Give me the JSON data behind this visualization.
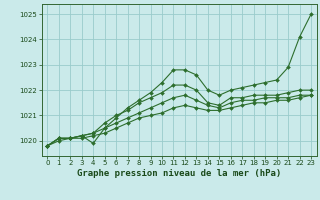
{
  "title": "Graphe pression niveau de la mer (hPa)",
  "bg_color": "#caeaea",
  "grid_color": "#99cccc",
  "line_color": "#2d6e2d",
  "xlim": [
    -0.5,
    23.5
  ],
  "ylim": [
    1019.4,
    1025.4
  ],
  "yticks": [
    1020,
    1021,
    1022,
    1023,
    1024,
    1025
  ],
  "xticks": [
    0,
    1,
    2,
    3,
    4,
    5,
    6,
    7,
    8,
    9,
    10,
    11,
    12,
    13,
    14,
    15,
    16,
    17,
    18,
    19,
    20,
    21,
    22,
    23
  ],
  "series": [
    [
      1019.8,
      1020.1,
      1020.1,
      1020.2,
      1019.9,
      1020.5,
      1020.9,
      1021.3,
      1021.6,
      1021.9,
      1022.3,
      1022.8,
      1022.8,
      1022.6,
      1022.0,
      1021.8,
      1022.0,
      1022.1,
      1022.2,
      1022.3,
      1022.4,
      1022.9,
      1024.1,
      1025.0
    ],
    [
      1019.8,
      1020.1,
      1020.1,
      1020.2,
      1020.3,
      1020.7,
      1021.0,
      1021.2,
      1021.5,
      1021.7,
      1021.9,
      1022.2,
      1022.2,
      1022.0,
      1021.5,
      1021.4,
      1021.7,
      1021.7,
      1021.8,
      1021.8,
      1021.8,
      1021.9,
      1022.0,
      1022.0
    ],
    [
      1019.8,
      1020.1,
      1020.1,
      1020.2,
      1020.3,
      1020.5,
      1020.7,
      1020.9,
      1021.1,
      1021.3,
      1021.5,
      1021.7,
      1021.8,
      1021.6,
      1021.4,
      1021.3,
      1021.5,
      1021.6,
      1021.6,
      1021.7,
      1021.7,
      1021.7,
      1021.8,
      1021.8
    ],
    [
      1019.8,
      1020.0,
      1020.1,
      1020.1,
      1020.2,
      1020.3,
      1020.5,
      1020.7,
      1020.9,
      1021.0,
      1021.1,
      1021.3,
      1021.4,
      1021.3,
      1021.2,
      1021.2,
      1021.3,
      1021.4,
      1021.5,
      1021.5,
      1021.6,
      1021.6,
      1021.7,
      1021.8
    ]
  ]
}
